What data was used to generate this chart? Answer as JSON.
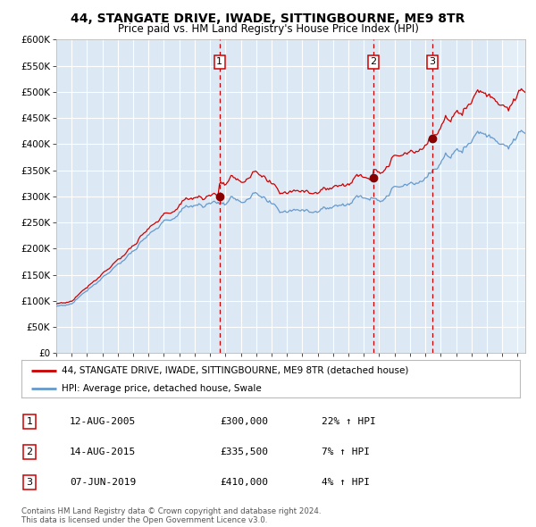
{
  "title": "44, STANGATE DRIVE, IWADE, SITTINGBOURNE, ME9 8TR",
  "subtitle": "Price paid vs. HM Land Registry's House Price Index (HPI)",
  "plot_bg_color": "#dce9f5",
  "fig_bg_color": "#ffffff",
  "ylim": [
    0,
    600000
  ],
  "yticks": [
    0,
    50000,
    100000,
    150000,
    200000,
    250000,
    300000,
    350000,
    400000,
    450000,
    500000,
    550000,
    600000
  ],
  "xlim_start": 1995.0,
  "xlim_end": 2025.5,
  "purchase_events": [
    {
      "date_label": "1",
      "date_str": "12-AUG-2005",
      "price": 300000,
      "year": 2005.62,
      "pct": "22%",
      "direction": "↑"
    },
    {
      "date_label": "2",
      "date_str": "14-AUG-2015",
      "price": 335500,
      "year": 2015.62,
      "pct": "7%",
      "direction": "↑"
    },
    {
      "date_label": "3",
      "date_str": "07-JUN-2019",
      "price": 410000,
      "year": 2019.44,
      "pct": "4%",
      "direction": "↑"
    }
  ],
  "legend_line1": "44, STANGATE DRIVE, IWADE, SITTINGBOURNE, ME9 8TR (detached house)",
  "legend_line2": "HPI: Average price, detached house, Swale",
  "footnote1": "Contains HM Land Registry data © Crown copyright and database right 2024.",
  "footnote2": "This data is licensed under the Open Government Licence v3.0.",
  "red_line_color": "#cc0000",
  "blue_line_color": "#6699cc",
  "marker_color": "#880000",
  "dashed_line_color": "#cc0000",
  "grid_color": "#ffffff",
  "spine_color": "#aaaaaa"
}
